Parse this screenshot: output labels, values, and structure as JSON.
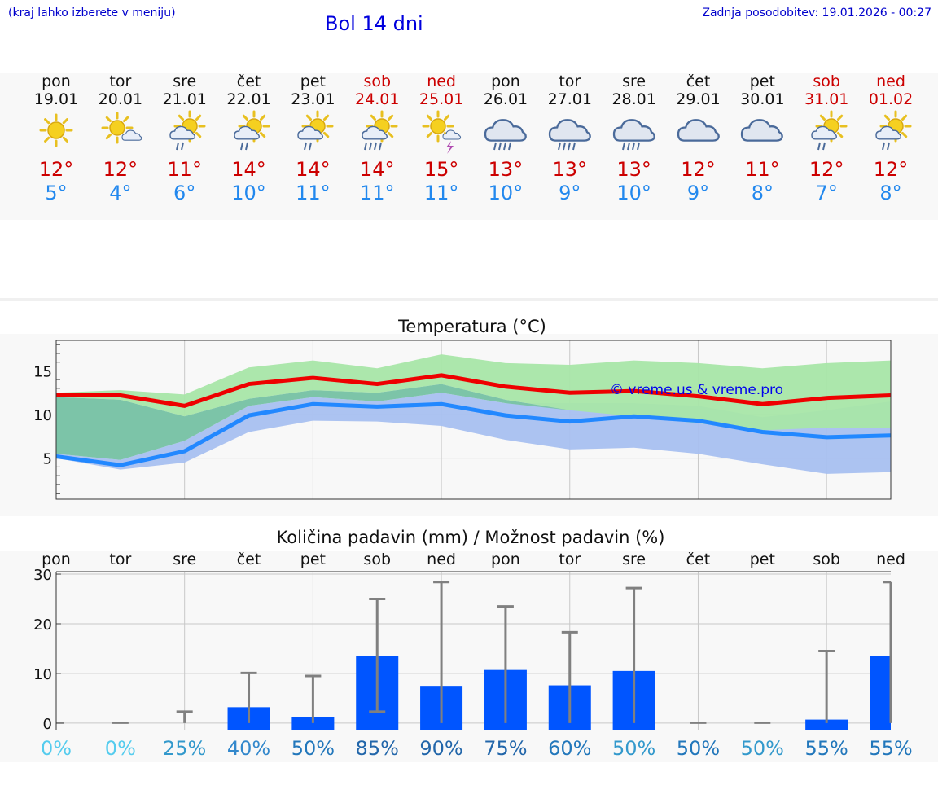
{
  "header": {
    "hint": "(kraj lahko izberete v meniju)",
    "title": "Bol 14 dni",
    "updated": "Zadnja posodobitev: 19.01.2026 - 00:27"
  },
  "forecast": [
    {
      "day": "pon",
      "date": "19.01",
      "weekend": false,
      "icon": "sun-icon",
      "max": "12°",
      "min": "5°"
    },
    {
      "day": "tor",
      "date": "20.01",
      "weekend": false,
      "icon": "sun-cloud-icon",
      "max": "12°",
      "min": "4°"
    },
    {
      "day": "sre",
      "date": "21.01",
      "weekend": false,
      "icon": "sun-cloud-rain-icon",
      "max": "11°",
      "min": "6°"
    },
    {
      "day": "čet",
      "date": "22.01",
      "weekend": false,
      "icon": "sun-cloud-rain-icon",
      "max": "14°",
      "min": "10°"
    },
    {
      "day": "pet",
      "date": "23.01",
      "weekend": false,
      "icon": "sun-cloud-rain-icon",
      "max": "14°",
      "min": "11°"
    },
    {
      "day": "sob",
      "date": "24.01",
      "weekend": true,
      "icon": "sun-cloud-heavy-rain-icon",
      "max": "14°",
      "min": "11°"
    },
    {
      "day": "ned",
      "date": "25.01",
      "weekend": true,
      "icon": "sun-thunder-icon",
      "max": "15°",
      "min": "11°"
    },
    {
      "day": "pon",
      "date": "26.01",
      "weekend": false,
      "icon": "cloud-heavy-rain-icon",
      "max": "13°",
      "min": "10°"
    },
    {
      "day": "tor",
      "date": "27.01",
      "weekend": false,
      "icon": "cloud-heavy-rain-icon",
      "max": "13°",
      "min": "9°"
    },
    {
      "day": "sre",
      "date": "28.01",
      "weekend": false,
      "icon": "cloud-heavy-rain-icon",
      "max": "13°",
      "min": "10°"
    },
    {
      "day": "čet",
      "date": "29.01",
      "weekend": false,
      "icon": "cloud-icon",
      "max": "12°",
      "min": "9°"
    },
    {
      "day": "pet",
      "date": "30.01",
      "weekend": false,
      "icon": "cloud-icon",
      "max": "11°",
      "min": "8°"
    },
    {
      "day": "sob",
      "date": "31.01",
      "weekend": true,
      "icon": "sun-cloud-rain-icon",
      "max": "12°",
      "min": "7°"
    },
    {
      "day": "ned",
      "date": "01.02",
      "weekend": true,
      "icon": "sun-cloud-rain-icon",
      "max": "12°",
      "min": "8°"
    }
  ],
  "colors": {
    "max_line": "#ee0000",
    "min_line": "#2288ff",
    "max_band": "#a8e6a8",
    "min_band": "#a8c0f0",
    "overlap_band": "#7cc4a8",
    "bar": "#0055ff",
    "whisker": "#808080"
  },
  "chart_data": [
    {
      "type": "line",
      "title": "Temperatura (°C)",
      "watermark": "© vreme.us & vreme.pro",
      "x": [
        1,
        2,
        3,
        4,
        5,
        6,
        7,
        8,
        9,
        10,
        11,
        12,
        13,
        14
      ],
      "ylim": [
        0.3,
        18.5
      ],
      "yticks": [
        5,
        10,
        15
      ],
      "series": [
        {
          "name": "max",
          "values": [
            12.2,
            12.2,
            11.0,
            13.5,
            14.2,
            13.5,
            14.5,
            13.2,
            12.5,
            12.7,
            12.1,
            11.2,
            11.9,
            12.2
          ]
        },
        {
          "name": "min",
          "values": [
            5.2,
            4.2,
            5.8,
            9.9,
            11.2,
            10.9,
            11.2,
            9.9,
            9.2,
            9.8,
            9.3,
            8.0,
            7.4,
            7.6
          ]
        },
        {
          "name": "max_range_low",
          "values": [
            12.0,
            11.7,
            9.8,
            11.8,
            12.8,
            12.5,
            13.5,
            11.7,
            10.5,
            9.8,
            9.0,
            8.2,
            8.5,
            8.5
          ]
        },
        {
          "name": "max_range_high",
          "values": [
            12.5,
            12.8,
            12.3,
            15.4,
            16.2,
            15.3,
            16.9,
            15.9,
            15.7,
            16.2,
            15.9,
            15.3,
            15.9,
            16.2
          ]
        },
        {
          "name": "min_range_low",
          "values": [
            5.0,
            3.7,
            4.5,
            8.0,
            9.3,
            9.2,
            8.7,
            7.1,
            6.0,
            6.2,
            5.5,
            4.3,
            3.2,
            3.4
          ]
        },
        {
          "name": "min_range_high",
          "values": [
            5.5,
            4.8,
            7.0,
            11.0,
            12.0,
            11.5,
            12.5,
            11.3,
            11.3,
            11.3,
            11.0,
            9.7,
            10.5,
            11.5
          ]
        }
      ]
    },
    {
      "type": "bar",
      "title": "Količina padavin (mm) / Možnost padavin (%)",
      "categories": [
        "pon",
        "tor",
        "sre",
        "čet",
        "pet",
        "sob",
        "ned",
        "pon",
        "tor",
        "sre",
        "čet",
        "pet",
        "sob",
        "ned"
      ],
      "ylim": [
        -1.5,
        30.5
      ],
      "yticks": [
        0,
        10,
        20,
        30
      ],
      "values": [
        0,
        0,
        0,
        3.2,
        1.2,
        13.5,
        7.5,
        10.7,
        7.6,
        10.5,
        0,
        0,
        0.7,
        13.5
      ],
      "range_low": [
        0,
        0,
        0,
        0,
        0,
        2.3,
        0,
        0,
        0,
        0,
        0,
        0,
        0,
        0
      ],
      "range_high": [
        0,
        0,
        2.3,
        10.1,
        9.5,
        25.0,
        28.4,
        23.5,
        18.3,
        27.2,
        0,
        0,
        14.5,
        28.4
      ],
      "probability": [
        "0%",
        "0%",
        "25%",
        "40%",
        "50%",
        "85%",
        "90%",
        "75%",
        "60%",
        "50%",
        "50%",
        "50%",
        "55%",
        "55%"
      ],
      "probability_colors": [
        "#55ccee",
        "#55ccee",
        "#3399cc",
        "#3388cc",
        "#2277bb",
        "#2266aa",
        "#2266aa",
        "#2266aa",
        "#2277bb",
        "#3399cc",
        "#2277bb",
        "#3399cc",
        "#2277bb",
        "#2277bb"
      ]
    }
  ]
}
